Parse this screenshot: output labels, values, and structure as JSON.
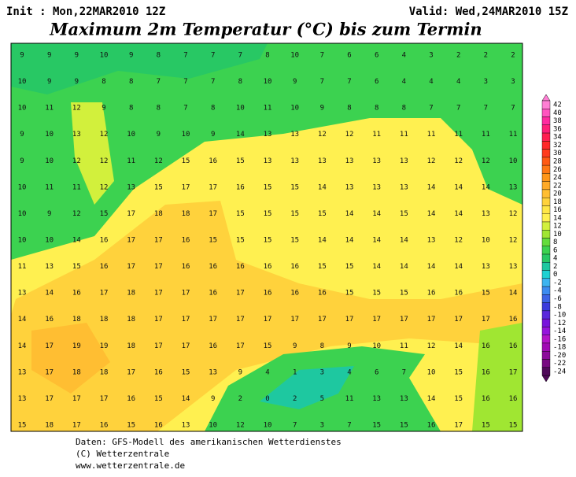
{
  "header": {
    "init": "Init : Mon,22MAR2010 12Z",
    "valid": "Valid: Wed,24MAR2010 15Z",
    "title": "Maximum 2m Temperatur (°C) bis zum Termin"
  },
  "footer": [
    "Daten: GFS-Modell des amerikanischen Wetterdienstes",
    "(C) Wetterzentrale",
    "www.wetterzentrale.de"
  ],
  "colorbar": {
    "labels": [
      42,
      40,
      38,
      36,
      34,
      32,
      30,
      28,
      26,
      24,
      22,
      20,
      18,
      16,
      14,
      12,
      10,
      8,
      6,
      4,
      2,
      0,
      -2,
      -4,
      -6,
      -8,
      -10,
      -12,
      -14,
      -16,
      -18,
      -20,
      -22,
      -24
    ],
    "colors": [
      "#ff7fd4",
      "#ff55c0",
      "#ff2aa0",
      "#ff1e78",
      "#ff1e50",
      "#ff2828",
      "#ff3c1e",
      "#ff5a14",
      "#ff7814",
      "#ff9619",
      "#ffaa28",
      "#ffbe32",
      "#ffd23c",
      "#ffe646",
      "#fff050",
      "#d2f03c",
      "#a0e632",
      "#64dc3c",
      "#3cd250",
      "#28c864",
      "#1ec8a0",
      "#1ed2d2",
      "#3cb4f0",
      "#3c8cf0",
      "#3c64e6",
      "#3c3cdc",
      "#5a28dc",
      "#7814dc",
      "#9614dc",
      "#b414c8",
      "#a00ab4",
      "#8c0a9b",
      "#780a82",
      "#500a5a"
    ]
  },
  "grid": [
    [
      9,
      9,
      9,
      10,
      9,
      8,
      7,
      7,
      7,
      8,
      10,
      7,
      6,
      6,
      4,
      3,
      2,
      2,
      2
    ],
    [
      10,
      9,
      9,
      8,
      8,
      7,
      7,
      7,
      8,
      10,
      9,
      7,
      7,
      6,
      4,
      4,
      4,
      3,
      3
    ],
    [
      10,
      11,
      12,
      9,
      8,
      8,
      7,
      8,
      10,
      11,
      10,
      9,
      8,
      8,
      8,
      7,
      7,
      7,
      7
    ],
    [
      9,
      10,
      13,
      12,
      10,
      9,
      10,
      9,
      14,
      13,
      13,
      12,
      12,
      11,
      11,
      11,
      11,
      11,
      11
    ],
    [
      9,
      10,
      12,
      12,
      11,
      12,
      15,
      16,
      15,
      13,
      13,
      13,
      13,
      13,
      13,
      12,
      12,
      12,
      10
    ],
    [
      10,
      11,
      11,
      12,
      13,
      15,
      17,
      17,
      16,
      15,
      15,
      14,
      13,
      13,
      13,
      14,
      14,
      14,
      13
    ],
    [
      10,
      9,
      12,
      15,
      17,
      18,
      18,
      17,
      15,
      15,
      15,
      15,
      14,
      14,
      15,
      14,
      14,
      13,
      12
    ],
    [
      10,
      10,
      14,
      16,
      17,
      17,
      16,
      15,
      15,
      15,
      15,
      14,
      14,
      14,
      14,
      13,
      12,
      10,
      12
    ],
    [
      11,
      13,
      15,
      16,
      17,
      17,
      16,
      16,
      16,
      16,
      16,
      15,
      15,
      14,
      14,
      14,
      14,
      13,
      13
    ],
    [
      13,
      14,
      16,
      17,
      18,
      17,
      17,
      16,
      17,
      16,
      16,
      16,
      15,
      15,
      15,
      16,
      16,
      15,
      14
    ],
    [
      14,
      16,
      18,
      18,
      18,
      17,
      17,
      17,
      17,
      17,
      17,
      17,
      17,
      17,
      17,
      17,
      17,
      17,
      16
    ],
    [
      14,
      17,
      19,
      19,
      18,
      17,
      17,
      16,
      17,
      15,
      9,
      8,
      9,
      10,
      11,
      12,
      14,
      16,
      16
    ],
    [
      13,
      17,
      18,
      18,
      17,
      16,
      15,
      13,
      9,
      4,
      1,
      3,
      4,
      6,
      7,
      10,
      15,
      16,
      17
    ],
    [
      13,
      17,
      17,
      17,
      16,
      15,
      14,
      9,
      2,
      0,
      2,
      5,
      11,
      13,
      13,
      14,
      15,
      16,
      16
    ],
    [
      15,
      18,
      17,
      16,
      15,
      16,
      13,
      10,
      12,
      10,
      7,
      3,
      7,
      15,
      15,
      16,
      17,
      15,
      15
    ]
  ]
}
